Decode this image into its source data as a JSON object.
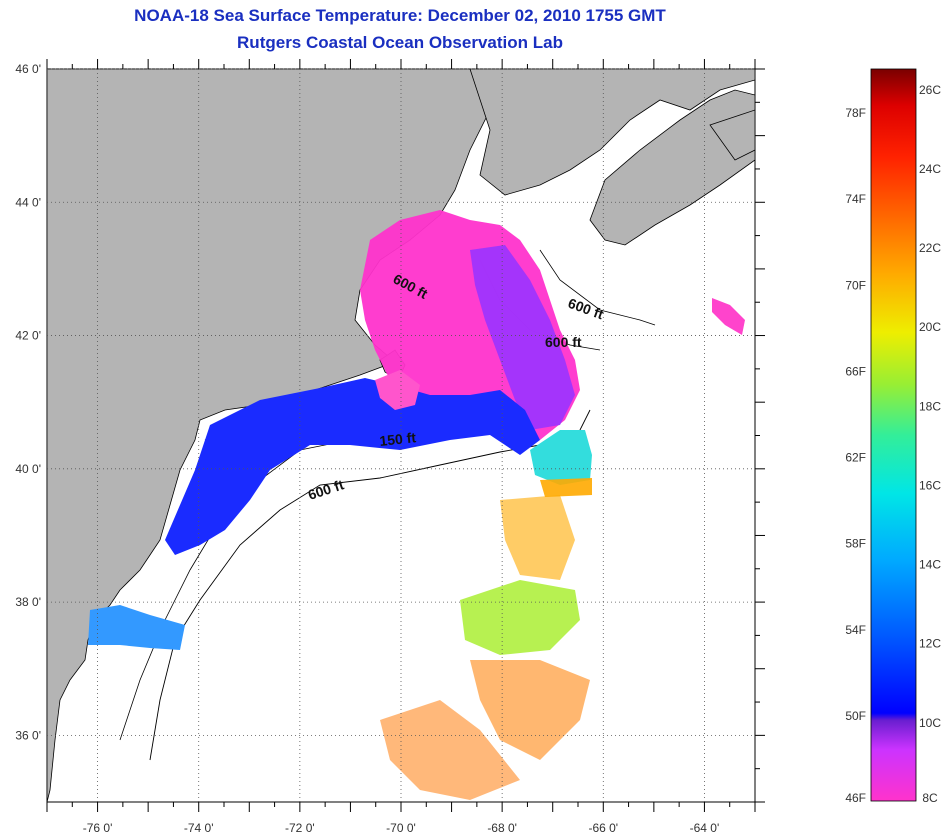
{
  "header": {
    "title": "NOAA-18 Sea Surface Temperature:  December 02, 2010 1755 GMT",
    "subtitle": "Rutgers Coastal Ocean Observation Lab"
  },
  "map": {
    "lon_range": [
      -77,
      -63
    ],
    "lat_range": [
      35,
      46
    ],
    "lon_ticks": [
      {
        "value": -76,
        "label": "-76 0'"
      },
      {
        "value": -74,
        "label": "-74 0'"
      },
      {
        "value": -72,
        "label": "-72 0'"
      },
      {
        "value": -70,
        "label": "-70 0'"
      },
      {
        "value": -68,
        "label": "-68 0'"
      },
      {
        "value": -66,
        "label": "-66 0'"
      },
      {
        "value": -64,
        "label": "-64 0'"
      }
    ],
    "lat_ticks": [
      {
        "value": 46,
        "label": "46 0'"
      },
      {
        "value": 44,
        "label": "44 0'"
      },
      {
        "value": 42,
        "label": "42 0'"
      },
      {
        "value": 40,
        "label": "40 0'"
      },
      {
        "value": 38,
        "label": "38 0'"
      },
      {
        "value": 36,
        "label": "36 0'"
      }
    ],
    "contour_labels": [
      "600 ft",
      "600 ft",
      "600 ft",
      "150 ft",
      "600 ft"
    ],
    "colors": {
      "land": "#b4b4b4",
      "ocean": "#ffffff",
      "grid": "#555555"
    }
  },
  "colorbar": {
    "f_labels": [
      "78F",
      "74F",
      "70F",
      "66F",
      "62F",
      "58F",
      "54F",
      "50F",
      "46F"
    ],
    "c_labels": [
      "26C",
      "24C",
      "22C",
      "20C",
      "18C",
      "16C",
      "14C",
      "12C",
      "10C",
      "8C"
    ],
    "range_f": [
      46,
      80
    ],
    "range_c": [
      8,
      26.5
    ]
  }
}
